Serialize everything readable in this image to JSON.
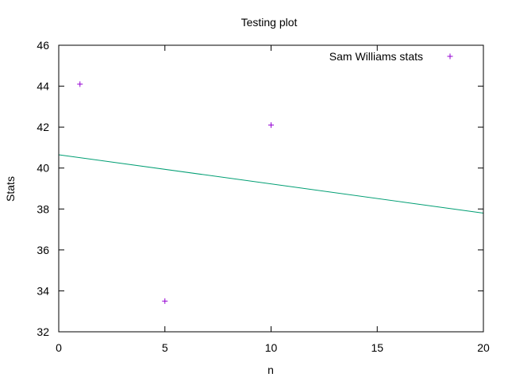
{
  "chart_data": {
    "type": "scatter",
    "title": "Testing plot",
    "xlabel": "n",
    "ylabel": "Stats",
    "xlim": [
      0,
      20
    ],
    "ylim": [
      32,
      46
    ],
    "xticks": [
      "0",
      "5",
      "10",
      "15",
      "20"
    ],
    "yticks": [
      "32",
      "34",
      "36",
      "38",
      "40",
      "42",
      "44",
      "46"
    ],
    "grid": false,
    "legend_position": "top-right",
    "series": [
      {
        "name": "Sam Williams stats",
        "type": "scatter",
        "color": "#9400d3",
        "x": [
          1,
          5,
          10
        ],
        "y": [
          44.1,
          33.5,
          42.1
        ]
      },
      {
        "type": "line",
        "color": "#009e73",
        "x": [
          0,
          20
        ],
        "y": [
          40.65,
          37.8
        ]
      }
    ]
  }
}
